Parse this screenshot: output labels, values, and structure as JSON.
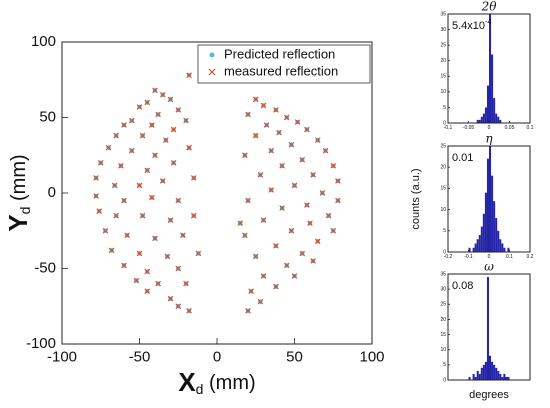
{
  "chart_data": [
    {
      "type": "scatter",
      "xlabel": [
        "X",
        "d",
        " (mm)"
      ],
      "ylabel": [
        "Y",
        "d",
        " (mm)"
      ],
      "xlim": [
        -100,
        100
      ],
      "ylim": [
        -100,
        100
      ],
      "xticks": [
        -100,
        -50,
        0,
        50,
        100
      ],
      "yticks": [
        -100,
        -50,
        0,
        50,
        100
      ],
      "legend": "upper right",
      "series": [
        {
          "name": "Predicted reflection",
          "color": "#5bb6e3",
          "marker": "dot",
          "x": [
            -40,
            -35,
            -30,
            -45,
            -50,
            -25,
            -38,
            -55,
            -60,
            -42,
            -28,
            -20,
            -65,
            -48,
            -33,
            -70,
            -55,
            -40,
            -18,
            -75,
            -62,
            -45,
            -28,
            -78,
            -66,
            -50,
            -35,
            -15,
            -78,
            -60,
            -42,
            -25,
            -76,
            -65,
            -48,
            -30,
            -15,
            -72,
            -58,
            -40,
            -22,
            -68,
            -50,
            -32,
            -60,
            -45,
            -25,
            -52,
            -38,
            -20,
            -45,
            -30,
            -25,
            -18,
            -18,
            -12,
            25,
            30,
            38,
            20,
            45,
            52,
            32,
            58,
            40,
            25,
            65,
            48,
            35,
            70,
            18,
            55,
            75,
            42,
            62,
            28,
            78,
            50,
            35,
            68,
            78,
            20,
            58,
            42,
            72,
            30,
            60,
            48,
            18,
            75,
            65,
            38,
            55,
            25,
            45,
            62,
            30,
            50,
            38,
            22,
            28,
            20,
            15
          ],
          "y": [
            68,
            65,
            62,
            60,
            57,
            55,
            52,
            48,
            45,
            45,
            42,
            48,
            38,
            38,
            35,
            30,
            28,
            25,
            30,
            20,
            18,
            15,
            20,
            10,
            5,
            5,
            8,
            10,
            -2,
            -5,
            -3,
            -5,
            -12,
            -15,
            -15,
            -18,
            -15,
            -25,
            -28,
            -30,
            -28,
            -38,
            -40,
            -42,
            -48,
            -52,
            -50,
            -58,
            -60,
            -60,
            -65,
            -70,
            -75,
            -78,
            78,
            -40,
            62,
            58,
            55,
            52,
            50,
            47,
            45,
            42,
            40,
            38,
            35,
            32,
            28,
            28,
            25,
            22,
            18,
            18,
            12,
            12,
            8,
            5,
            2,
            0,
            -5,
            -5,
            -8,
            -10,
            -15,
            -18,
            -20,
            -25,
            -28,
            -25,
            -32,
            -35,
            -40,
            -42,
            -48,
            -45,
            -55,
            -55,
            -62,
            -65,
            -72,
            -78,
            -20
          ]
        },
        {
          "name": "measured reflection",
          "color": "#d2552f",
          "marker": "x",
          "x": [
            -40,
            -35,
            -30,
            -45,
            -50,
            -25,
            -38,
            -55,
            -60,
            -42,
            -28,
            -20,
            -65,
            -48,
            -33,
            -70,
            -55,
            -40,
            -18,
            -75,
            -62,
            -45,
            -28,
            -78,
            -66,
            -50,
            -35,
            -15,
            -78,
            -60,
            -42,
            -25,
            -76,
            -65,
            -48,
            -30,
            -15,
            -72,
            -58,
            -40,
            -22,
            -68,
            -50,
            -32,
            -60,
            -45,
            -25,
            -52,
            -38,
            -20,
            -45,
            -30,
            -25,
            -18,
            -18,
            -12,
            25,
            30,
            38,
            20,
            45,
            52,
            32,
            58,
            40,
            25,
            65,
            48,
            35,
            70,
            18,
            55,
            75,
            42,
            62,
            28,
            78,
            50,
            35,
            68,
            78,
            20,
            58,
            42,
            72,
            30,
            60,
            48,
            18,
            75,
            65,
            38,
            55,
            25,
            45,
            62,
            30,
            50,
            38,
            22,
            28,
            20,
            15
          ],
          "y": [
            68,
            65,
            62,
            60,
            57,
            55,
            52,
            48,
            45,
            45,
            42,
            48,
            38,
            38,
            35,
            30,
            28,
            25,
            30,
            20,
            18,
            15,
            20,
            10,
            5,
            5,
            8,
            10,
            -2,
            -5,
            -3,
            -5,
            -12,
            -15,
            -15,
            -18,
            -15,
            -25,
            -28,
            -30,
            -28,
            -38,
            -40,
            -42,
            -48,
            -52,
            -50,
            -58,
            -60,
            -60,
            -65,
            -70,
            -75,
            -78,
            78,
            -40,
            62,
            58,
            55,
            52,
            50,
            47,
            45,
            42,
            40,
            38,
            35,
            32,
            28,
            28,
            25,
            22,
            18,
            18,
            12,
            12,
            8,
            5,
            2,
            0,
            -5,
            -5,
            -8,
            -10,
            -15,
            -18,
            -20,
            -25,
            -28,
            -25,
            -32,
            -35,
            -40,
            -42,
            -48,
            -45,
            -55,
            -55,
            -62,
            -65,
            -72,
            -78,
            -20
          ]
        }
      ]
    },
    {
      "type": "histogram",
      "title": "2θ",
      "annotation": [
        "5.4x10",
        "-4"
      ],
      "color": "#2424a8",
      "bins": [
        -0.03,
        -0.025,
        -0.02,
        -0.015,
        -0.01,
        -0.005,
        0,
        0.005,
        0.01,
        0.015,
        0.02,
        0.025,
        0.03
      ],
      "counts": [
        1,
        1,
        2,
        3,
        5,
        12,
        35,
        22,
        8,
        3,
        2,
        1
      ],
      "xlim": [
        -0.1,
        0.1
      ],
      "xticks": [
        -0.1,
        -0.05,
        0,
        0.05,
        0.1
      ],
      "ylim": [
        0,
        35
      ],
      "yticks": [
        0,
        5,
        10,
        15,
        20,
        25,
        30,
        35
      ]
    },
    {
      "type": "histogram",
      "title": "η",
      "annotation": [
        "0.01"
      ],
      "color": "#2424a8",
      "ylabel": "counts (a.u.)",
      "bins": [
        -0.1,
        -0.09,
        -0.08,
        -0.07,
        -0.06,
        -0.05,
        -0.04,
        -0.03,
        -0.02,
        -0.01,
        0,
        0.01,
        0.02,
        0.03,
        0.04,
        0.05,
        0.06,
        0.07,
        0.08,
        0.09,
        0.1
      ],
      "counts": [
        1,
        0,
        1,
        2,
        3,
        4,
        6,
        9,
        14,
        22,
        25,
        18,
        12,
        8,
        5,
        3,
        2,
        1,
        0,
        1
      ],
      "xlim": [
        -0.2,
        0.2
      ],
      "xticks": [
        -0.2,
        -0.1,
        0,
        0.1,
        0.2
      ],
      "ylim": [
        0,
        25
      ],
      "yticks": [
        0,
        5,
        10,
        15,
        20,
        25
      ]
    },
    {
      "type": "histogram",
      "title": "ω",
      "annotation": [
        "0.08"
      ],
      "color": "#2424a8",
      "xlabel": "degrees",
      "bins": [
        -0.5,
        -0.45,
        -0.4,
        -0.35,
        -0.3,
        -0.25,
        -0.2,
        -0.15,
        -0.1,
        -0.05,
        0,
        0.05,
        0.1,
        0.15,
        0.2,
        0.25,
        0.3,
        0.35,
        0.4,
        0.45,
        0.5
      ],
      "counts": [
        1,
        0,
        2,
        1,
        3,
        2,
        4,
        5,
        6,
        34,
        8,
        6,
        5,
        4,
        3,
        2,
        1,
        2,
        1,
        1
      ],
      "xlim": [
        -1,
        1
      ],
      "ylim": [
        0,
        35
      ],
      "yticks": [
        0,
        5,
        10,
        15,
        20,
        25,
        30,
        35
      ]
    }
  ]
}
